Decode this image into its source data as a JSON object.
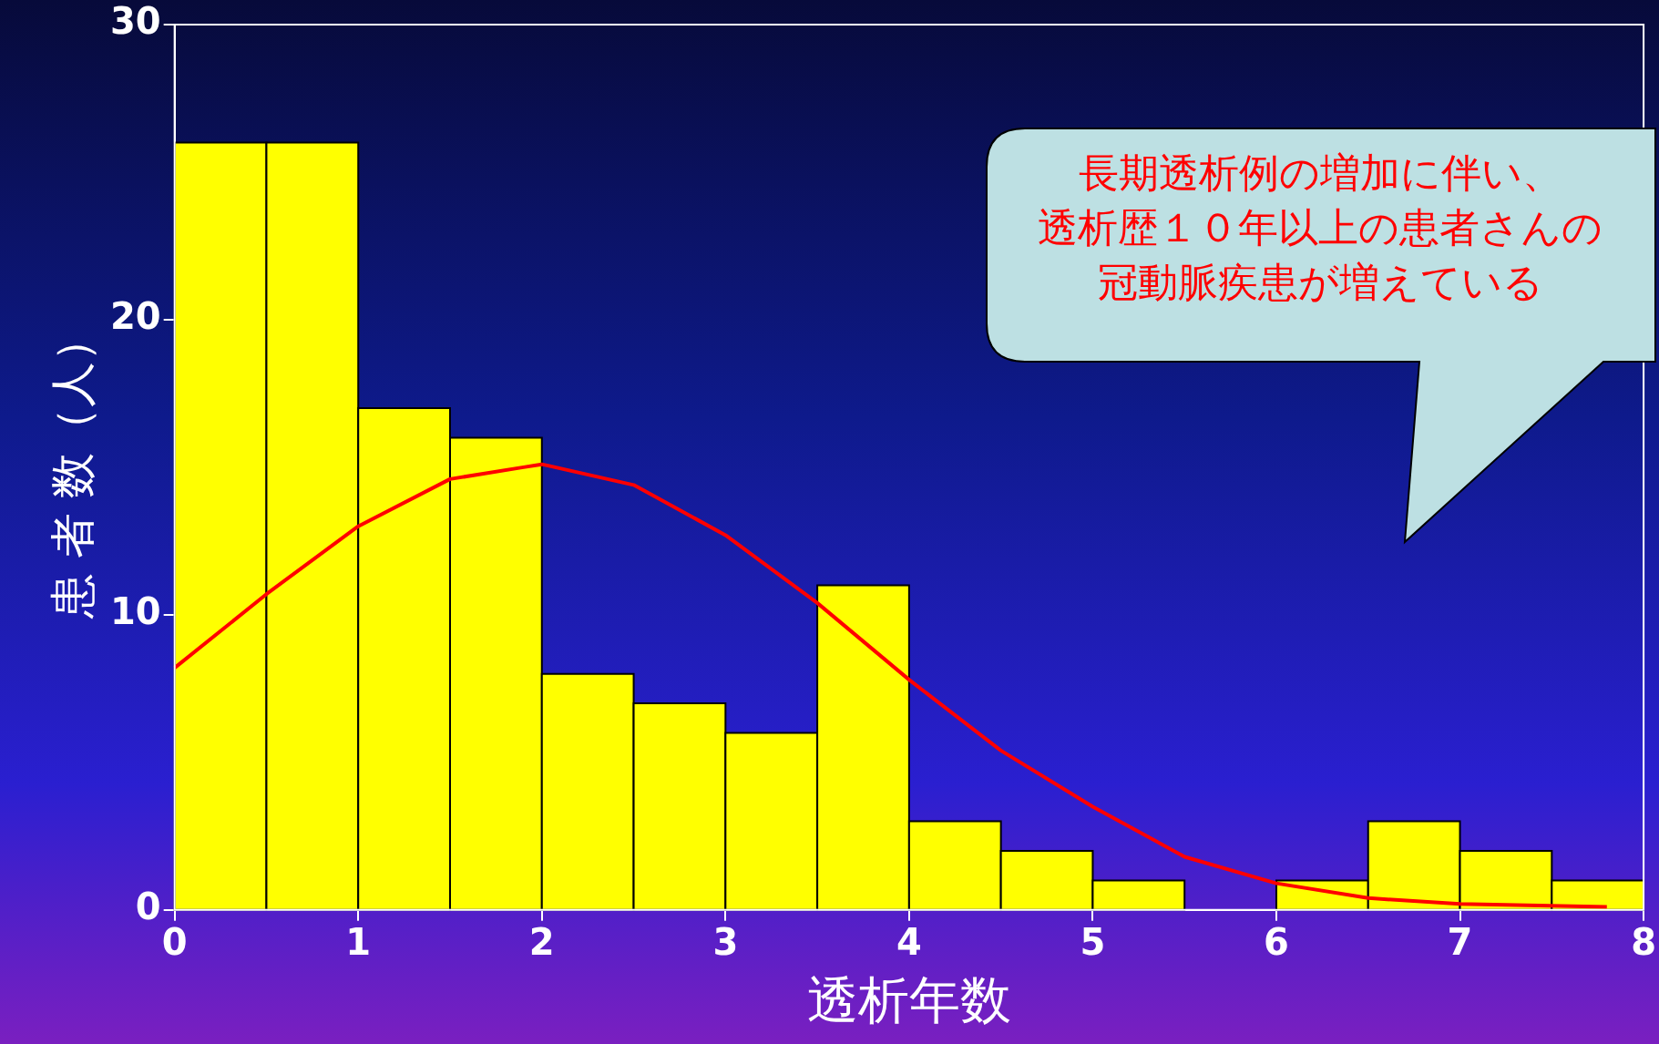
{
  "chart_data": {
    "type": "histogram",
    "xlabel": "透析年数",
    "ylabel": "患 者 数（人）",
    "bins": [
      0,
      0.5,
      1,
      1.5,
      2,
      2.5,
      3,
      3.5,
      4,
      4.5,
      5,
      5.5,
      6,
      6.5,
      7,
      7.5,
      8
    ],
    "values": [
      26,
      26,
      17,
      16,
      8,
      7,
      6,
      11,
      3,
      2,
      1,
      0,
      1,
      3,
      2,
      1
    ],
    "color": "#ffff00",
    "series": [
      {
        "type": "line",
        "color": "#ff0000",
        "x": [
          0,
          0.5,
          1,
          1.5,
          1.9,
          2,
          2.5,
          3,
          3.5,
          4,
          4.5,
          5,
          5.5,
          6,
          6.5,
          7,
          7.8
        ],
        "values": [
          8.2,
          10.7,
          13,
          14.6,
          15,
          15.1,
          14.4,
          12.7,
          10.4,
          7.8,
          5.4,
          3.5,
          1.8,
          0.9,
          0.4,
          0.2,
          0.1
        ]
      }
    ],
    "xlim": [
      0,
      8
    ],
    "xticks": [
      0,
      1,
      2,
      3,
      4,
      5,
      6,
      7,
      8
    ],
    "ylim": [
      0,
      30
    ],
    "yticks": [
      0,
      10,
      20,
      30
    ],
    "grid": false,
    "legend": false,
    "marker": "none",
    "line_style": "solid",
    "annotations": [
      "長期透析例の増加に伴い、",
      "透析歴１０年以上の患者さんの",
      "冠動脈疾患が増えている"
    ]
  }
}
